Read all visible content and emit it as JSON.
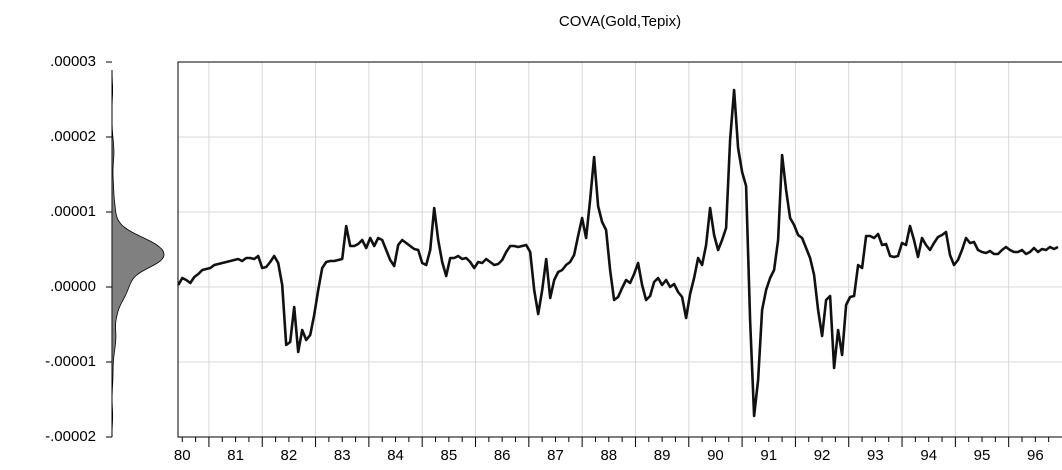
{
  "chart_data": {
    "type": "line",
    "title": "COVA(Gold,Tepix)",
    "x": [
      80.425,
      80.5,
      80.575,
      80.65,
      80.725,
      80.8,
      80.875,
      80.95,
      81.025,
      81.1,
      81.175,
      81.25,
      81.325,
      81.4,
      81.475,
      81.55,
      81.625,
      81.7,
      81.775,
      81.85,
      81.925,
      82,
      82.075,
      82.15,
      82.225,
      82.3,
      82.375,
      82.45,
      82.525,
      82.6,
      82.675,
      82.75,
      82.825,
      82.9,
      82.975,
      83.05,
      83.125,
      83.2,
      83.275,
      83.35,
      83.425,
      83.5,
      83.575,
      83.65,
      83.725,
      83.8,
      83.875,
      83.95,
      84.025,
      84.1,
      84.175,
      84.25,
      84.325,
      84.4,
      84.475,
      84.55,
      84.625,
      84.7,
      84.775,
      84.85,
      84.925,
      85,
      85.075,
      85.15,
      85.225,
      85.3,
      85.375,
      85.45,
      85.525,
      85.6,
      85.675,
      85.75,
      85.825,
      85.9,
      85.975,
      86.05,
      86.125,
      86.2,
      86.275,
      86.35,
      86.425,
      86.5,
      86.575,
      86.65,
      86.725,
      86.8,
      86.875,
      86.95,
      87.025,
      87.1,
      87.175,
      87.25,
      87.325,
      87.4,
      87.475,
      87.55,
      87.625,
      87.7,
      87.775,
      87.85,
      87.925,
      88,
      88.075,
      88.15,
      88.225,
      88.3,
      88.375,
      88.45,
      88.525,
      88.6,
      88.675,
      88.75,
      88.825,
      88.9,
      88.975,
      89.05,
      89.125,
      89.2,
      89.275,
      89.35,
      89.425,
      89.5,
      89.575,
      89.65,
      89.725,
      89.8,
      89.875,
      89.95,
      90.025,
      90.1,
      90.175,
      90.25,
      90.325,
      90.4,
      90.475,
      90.55,
      90.625,
      90.7,
      90.775,
      90.85,
      90.925,
      91,
      91.075,
      91.15,
      91.225,
      91.3,
      91.375,
      91.45,
      91.525,
      91.6,
      91.675,
      91.75,
      91.825,
      91.9,
      91.975,
      92.05,
      92.125,
      92.2,
      92.275,
      92.35,
      92.425,
      92.5,
      92.575,
      92.65,
      92.725,
      92.8,
      92.875,
      92.95,
      93.025,
      93.1,
      93.175,
      93.25,
      93.325,
      93.4,
      93.475,
      93.55,
      93.625,
      93.7,
      93.775,
      93.85,
      93.925,
      94,
      94.075,
      94.15,
      94.225,
      94.3,
      94.375,
      94.45,
      94.525,
      94.6,
      94.675,
      94.75,
      94.825,
      94.9,
      94.975,
      95.05,
      95.125,
      95.2,
      95.275,
      95.35,
      95.425,
      95.5,
      95.575,
      95.65,
      95.725,
      95.8,
      95.875,
      95.95,
      96.025,
      96.1,
      96.175,
      96.25,
      96.325,
      96.4,
      96.475,
      96.55,
      96.625,
      96.7,
      96.775,
      96.85,
      96.925
    ],
    "series": [
      {
        "name": "COVA(Gold,Tepix)",
        "color": "#111111",
        "values": [
          2.7e-07,
          1.2e-06,
          9.3e-07,
          5.3e-07,
          1.33e-06,
          1.73e-06,
          2.27e-06,
          2.4e-06,
          2.53e-06,
          2.93e-06,
          3.07e-06,
          3.2e-06,
          3.33e-06,
          3.47e-06,
          3.6e-06,
          3.73e-06,
          3.47e-06,
          3.87e-06,
          3.87e-06,
          3.73e-06,
          4.13e-06,
          2.53e-06,
          2.67e-06,
          3.33e-06,
          4.13e-06,
          3.2e-06,
          2.7e-07,
          -7.73e-06,
          -7.33e-06,
          -2.67e-06,
          -8.67e-06,
          -5.73e-06,
          -7.07e-06,
          -6.4e-06,
          -3.73e-06,
          -4e-07,
          2.53e-06,
          3.33e-06,
          3.47e-06,
          3.47e-06,
          3.6e-06,
          3.73e-06,
          8.13e-06,
          5.47e-06,
          5.47e-06,
          5.73e-06,
          6.27e-06,
          5.2e-06,
          6.53e-06,
          5.47e-06,
          6.53e-06,
          6.27e-06,
          4.93e-06,
          3.6e-06,
          2.8e-06,
          5.6e-06,
          6.27e-06,
          5.87e-06,
          5.47e-06,
          5.07e-06,
          4.93e-06,
          3.2e-06,
          2.93e-06,
          4.93e-06,
          1.053e-05,
          6.27e-06,
          3.33e-06,
          1.47e-06,
          3.87e-06,
          3.87e-06,
          4.13e-06,
          3.73e-06,
          3.87e-06,
          3.33e-06,
          2.53e-06,
          3.33e-06,
          3.2e-06,
          3.73e-06,
          3.33e-06,
          2.93e-06,
          3.07e-06,
          3.6e-06,
          4.67e-06,
          5.47e-06,
          5.47e-06,
          5.33e-06,
          5.47e-06,
          5.6e-06,
          4.67e-06,
          -4e-07,
          -3.6e-06,
          -4e-07,
          3.73e-06,
          -1.47e-06,
          9.3e-07,
          2e-06,
          2.27e-06,
          2.93e-06,
          3.33e-06,
          4.27e-06,
          6.8e-06,
          9.2e-06,
          6.53e-06,
          1.16e-05,
          1.733e-05,
          1.08e-05,
          8.67e-06,
          7.6e-06,
          2.27e-06,
          -1.73e-06,
          -1.33e-06,
          -1.3e-07,
          9.3e-07,
          5.3e-07,
          1.73e-06,
          3.2e-06,
          2.7e-07,
          -1.73e-06,
          -1.2e-06,
          6.7e-07,
          1.2e-06,
          2.7e-07,
          9.3e-07,
          0,
          4e-07,
          -6.7e-07,
          -1.33e-06,
          -4.13e-06,
          -9.3e-07,
          1.2e-06,
          3.87e-06,
          2.93e-06,
          5.6e-06,
          1.053e-05,
          6.93e-06,
          4.93e-06,
          6.27e-06,
          7.87e-06,
          1.96e-05,
          2.627e-05,
          1.853e-05,
          1.533e-05,
          1.347e-05,
          -4.4e-06,
          -1.72e-05,
          -1.24e-05,
          -3.07e-06,
          -4e-07,
          1.2e-06,
          2.27e-06,
          6.27e-06,
          1.76e-05,
          1.293e-05,
          9.2e-06,
          8.27e-06,
          6.93e-06,
          6.53e-06,
          5.2e-06,
          3.87e-06,
          1.6e-06,
          -3.07e-06,
          -6.53e-06,
          -1.73e-06,
          -1.2e-06,
          -1.08e-05,
          -5.73e-06,
          -9.07e-06,
          -2.4e-06,
          -1.33e-06,
          -1.2e-06,
          2.93e-06,
          2.53e-06,
          6.8e-06,
          6.8e-06,
          6.53e-06,
          7.07e-06,
          5.6e-06,
          5.73e-06,
          4.13e-06,
          4e-06,
          4.13e-06,
          5.87e-06,
          5.6e-06,
          8.13e-06,
          6.27e-06,
          4e-06,
          6.53e-06,
          5.6e-06,
          4.93e-06,
          5.87e-06,
          6.67e-06,
          6.93e-06,
          7.33e-06,
          4.27e-06,
          2.93e-06,
          3.6e-06,
          4.93e-06,
          6.53e-06,
          5.87e-06,
          6e-06,
          4.93e-06,
          4.67e-06,
          4.53e-06,
          4.8e-06,
          4.4e-06,
          4.4e-06,
          4.93e-06,
          5.33e-06,
          4.93e-06,
          4.67e-06,
          4.67e-06,
          4.93e-06,
          4.4e-06,
          4.67e-06,
          5.2e-06,
          4.67e-06,
          5.07e-06,
          4.93e-06,
          5.33e-06,
          5.07e-06,
          5.33e-06
        ]
      }
    ],
    "xlim": [
      80.42,
      97.0
    ],
    "xticks": [
      80,
      81,
      82,
      83,
      84,
      85,
      86,
      87,
      88,
      89,
      90,
      91,
      92,
      93,
      94,
      95,
      96
    ],
    "ylim": [
      -2e-05,
      3e-05
    ],
    "yticks": [
      {
        "value": 3e-05,
        "label": ".00003"
      },
      {
        "value": 2e-05,
        "label": ".00002"
      },
      {
        "value": 1e-05,
        "label": ".00001"
      },
      {
        "value": 0,
        "label": ".00000"
      },
      {
        "value": -1e-05,
        "label": "-.00001"
      },
      {
        "value": -2e-05,
        "label": "-.00002"
      }
    ],
    "grid": true,
    "density_color": "#808080"
  }
}
